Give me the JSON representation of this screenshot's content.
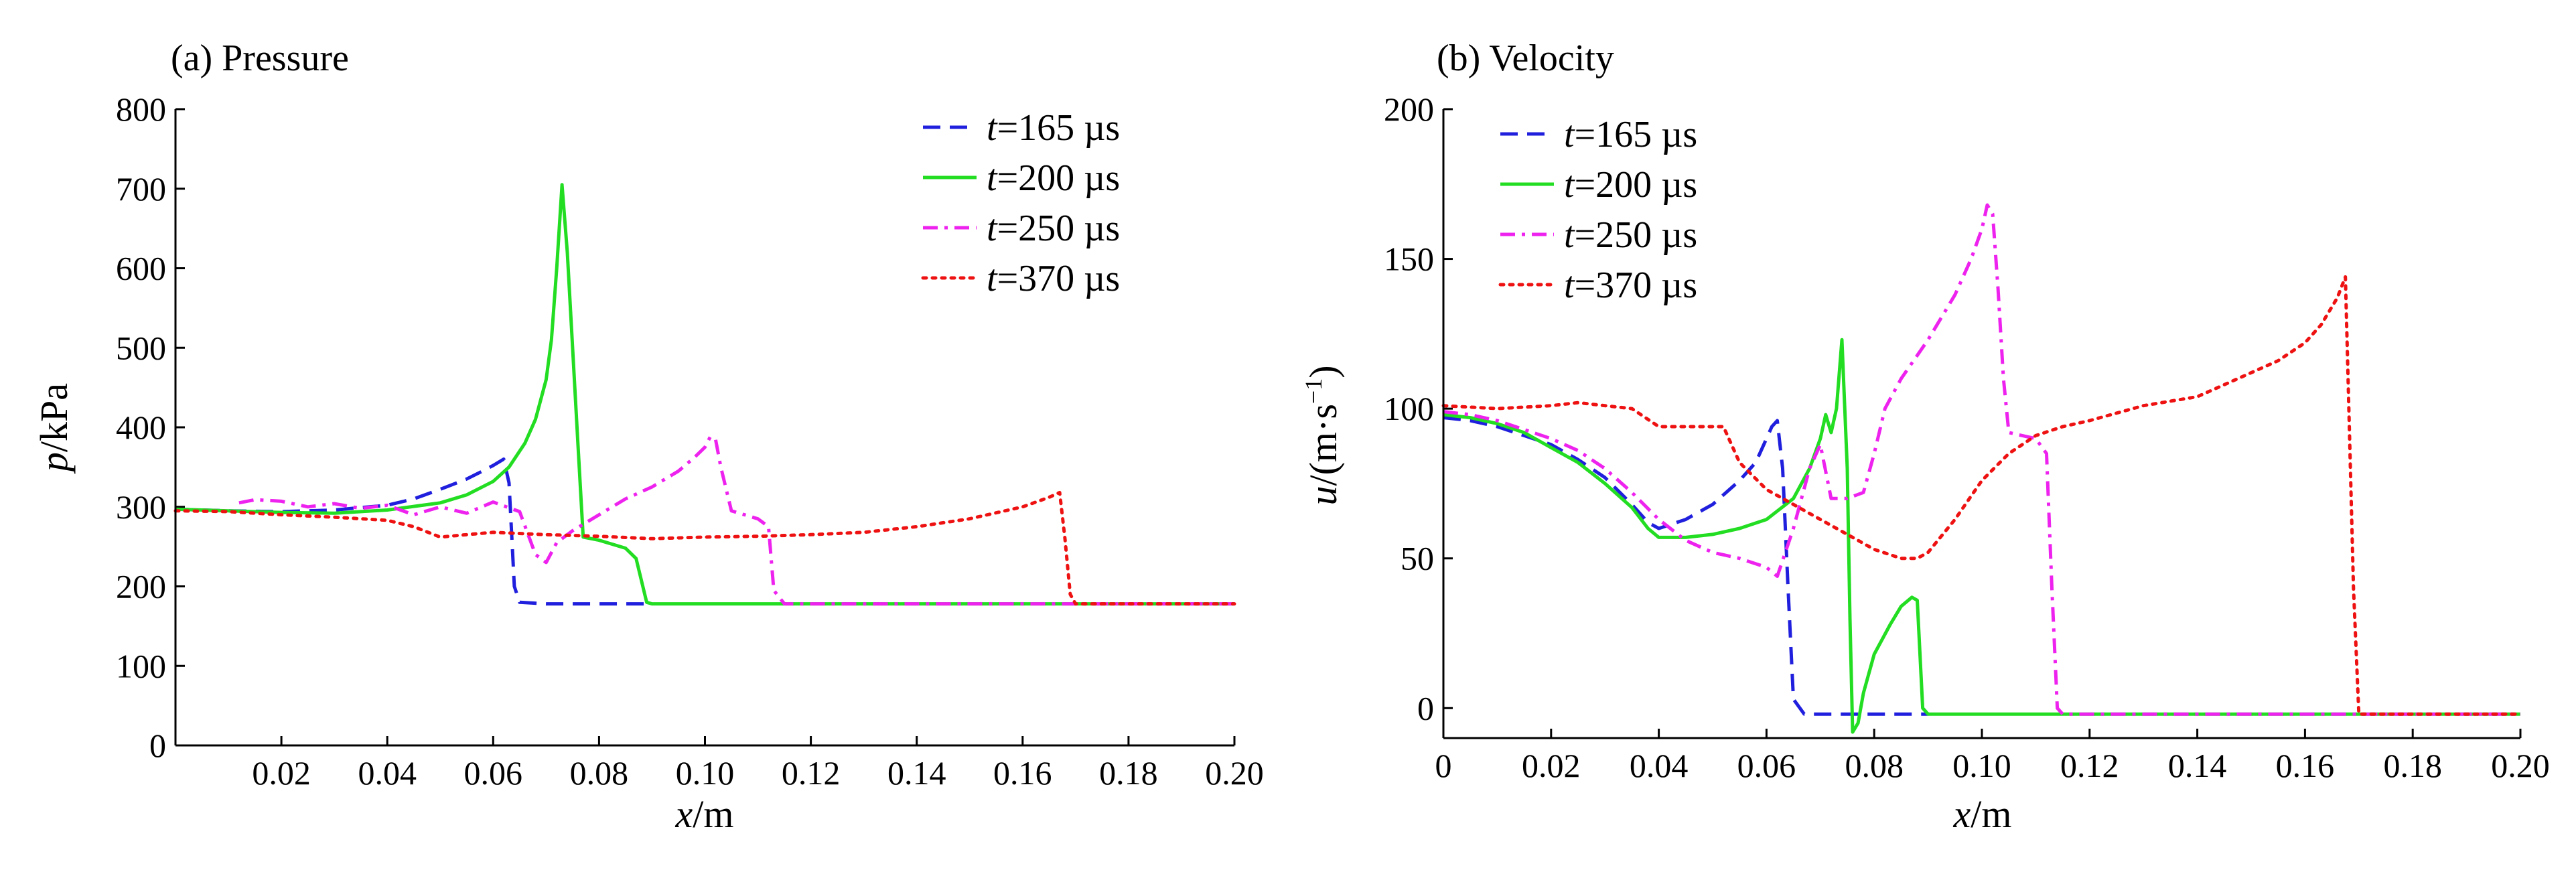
{
  "chart_data": [
    {
      "type": "line",
      "title": "(a) Pressure",
      "xlabel_var": "x",
      "xlabel_unit": "/m",
      "ylabel_var": "p",
      "ylabel_unit": "/kPa",
      "xlim": [
        0,
        0.2
      ],
      "ylim": [
        0,
        800
      ],
      "xticks": [
        0.02,
        0.04,
        0.06,
        0.08,
        0.1,
        0.12,
        0.14,
        0.16,
        0.18,
        0.2
      ],
      "xtick_labels": [
        "0.02",
        "0.04",
        "0.06",
        "0.08",
        "0.10",
        "0.12",
        "0.14",
        "0.16",
        "0.18",
        "0.20"
      ],
      "yticks": [
        0,
        100,
        200,
        300,
        400,
        500,
        600,
        700,
        800
      ],
      "ytick_labels": [
        "0",
        "100",
        "200",
        "300",
        "400",
        "500",
        "600",
        "700",
        "800"
      ],
      "grid": false,
      "legend_position": "top-right",
      "series": [
        {
          "name": "t=165 µs",
          "name_var": "t",
          "name_rest": "=165 µs",
          "color": "#1f1fdd",
          "dash": "dash",
          "x": [
            0,
            0.01,
            0.02,
            0.03,
            0.04,
            0.045,
            0.05,
            0.055,
            0.058,
            0.06,
            0.062,
            0.063,
            0.064,
            0.065,
            0.07,
            0.08,
            0.09
          ],
          "y": [
            297,
            295,
            294,
            296,
            302,
            310,
            322,
            335,
            345,
            352,
            360,
            330,
            200,
            180,
            178,
            178,
            178
          ]
        },
        {
          "name": "t=200 µs",
          "name_var": "t",
          "name_rest": "=200 µs",
          "color": "#22dd22",
          "dash": "solid",
          "x": [
            0,
            0.01,
            0.02,
            0.03,
            0.04,
            0.05,
            0.055,
            0.06,
            0.063,
            0.066,
            0.068,
            0.07,
            0.071,
            0.072,
            0.073,
            0.074,
            0.075,
            0.076,
            0.077,
            0.08,
            0.085,
            0.087,
            0.089,
            0.09,
            0.1,
            0.12,
            0.14,
            0.16,
            0.18,
            0.2
          ],
          "y": [
            297,
            295,
            293,
            292,
            296,
            305,
            315,
            332,
            350,
            380,
            410,
            460,
            510,
            600,
            705,
            620,
            500,
            380,
            262,
            258,
            248,
            235,
            180,
            178,
            178,
            178,
            178,
            178,
            178,
            178
          ]
        },
        {
          "name": "t=250 µs",
          "name_var": "t",
          "name_rest": "=250 µs",
          "color": "#ee22ee",
          "dash": "dashdot",
          "x": [
            0.012,
            0.015,
            0.02,
            0.025,
            0.03,
            0.035,
            0.04,
            0.045,
            0.05,
            0.055,
            0.06,
            0.065,
            0.068,
            0.07,
            0.072,
            0.075,
            0.08,
            0.085,
            0.09,
            0.095,
            0.098,
            0.1,
            0.101,
            0.102,
            0.103,
            0.105,
            0.11,
            0.112,
            0.113,
            0.115,
            0.13,
            0.15,
            0.17,
            0.2
          ],
          "y": [
            305,
            309,
            307,
            300,
            304,
            298,
            302,
            290,
            300,
            292,
            306,
            294,
            240,
            230,
            255,
            270,
            290,
            310,
            325,
            345,
            362,
            375,
            388,
            385,
            350,
            295,
            285,
            275,
            195,
            178,
            178,
            178,
            178,
            178
          ]
        },
        {
          "name": "t=370 µs",
          "name_var": "t",
          "name_rest": "=370 µs",
          "color": "#ee1111",
          "dash": "dot",
          "x": [
            0,
            0.01,
            0.02,
            0.03,
            0.04,
            0.045,
            0.05,
            0.055,
            0.06,
            0.07,
            0.08,
            0.09,
            0.1,
            0.11,
            0.12,
            0.13,
            0.14,
            0.15,
            0.16,
            0.165,
            0.167,
            0.168,
            0.169,
            0.17,
            0.18,
            0.19,
            0.2
          ],
          "y": [
            295,
            294,
            290,
            287,
            283,
            275,
            262,
            265,
            268,
            265,
            263,
            260,
            262,
            263,
            265,
            268,
            275,
            285,
            300,
            312,
            318,
            260,
            190,
            178,
            178,
            178,
            178
          ]
        }
      ]
    },
    {
      "type": "line",
      "title": "(b) Velocity",
      "xlabel_var": "x",
      "xlabel_unit": "/m",
      "ylabel_var": "u",
      "ylabel_unit": "/(m·s",
      "ylabel_sup": "−1",
      "ylabel_close": ")",
      "xlim": [
        0,
        0.2
      ],
      "ylim": [
        -10,
        200
      ],
      "xticks": [
        0,
        0.02,
        0.04,
        0.06,
        0.08,
        0.1,
        0.12,
        0.14,
        0.16,
        0.18,
        0.2
      ],
      "xtick_labels": [
        "0",
        "0.02",
        "0.04",
        "0.06",
        "0.08",
        "0.10",
        "0.12",
        "0.14",
        "0.16",
        "0.18",
        "0.20"
      ],
      "yticks": [
        0,
        50,
        100,
        150,
        200
      ],
      "ytick_labels": [
        "0",
        "50",
        "100",
        "150",
        "200"
      ],
      "grid": false,
      "legend_position": "top-left",
      "series": [
        {
          "name": "t=165 µs",
          "name_var": "t",
          "name_rest": "=165 µs",
          "color": "#1f1fdd",
          "dash": "dash",
          "x": [
            0,
            0.005,
            0.01,
            0.015,
            0.02,
            0.025,
            0.03,
            0.035,
            0.038,
            0.04,
            0.045,
            0.05,
            0.055,
            0.058,
            0.06,
            0.061,
            0.062,
            0.063,
            0.064,
            0.065,
            0.067,
            0.07,
            0.08,
            0.09
          ],
          "y": [
            97,
            96,
            94,
            91,
            88,
            83,
            77,
            68,
            62,
            60,
            63,
            68,
            76,
            82,
            90,
            94,
            96,
            80,
            40,
            3,
            -2,
            -2,
            -2,
            -2
          ]
        },
        {
          "name": "t=200 µs",
          "name_var": "t",
          "name_rest": "=200 µs",
          "color": "#22dd22",
          "dash": "solid",
          "x": [
            0,
            0.005,
            0.01,
            0.015,
            0.02,
            0.025,
            0.03,
            0.035,
            0.038,
            0.04,
            0.045,
            0.05,
            0.055,
            0.06,
            0.065,
            0.068,
            0.07,
            0.071,
            0.072,
            0.073,
            0.074,
            0.075,
            0.0755,
            0.076,
            0.077,
            0.078,
            0.08,
            0.083,
            0.085,
            0.087,
            0.088,
            0.089,
            0.09,
            0.1,
            0.12,
            0.14,
            0.16,
            0.18,
            0.2
          ],
          "y": [
            98,
            97,
            95,
            92,
            87,
            82,
            75,
            67,
            60,
            57,
            57,
            58,
            60,
            63,
            70,
            80,
            90,
            98,
            92,
            100,
            123,
            80,
            30,
            -8,
            -5,
            5,
            18,
            28,
            34,
            37,
            36,
            0,
            -2,
            -2,
            -2,
            -2,
            -2,
            -2,
            -2
          ]
        },
        {
          "name": "t=250 µs",
          "name_var": "t",
          "name_rest": "=250 µs",
          "color": "#ee22ee",
          "dash": "dashdot",
          "x": [
            0,
            0.005,
            0.01,
            0.015,
            0.02,
            0.025,
            0.03,
            0.035,
            0.04,
            0.045,
            0.05,
            0.055,
            0.06,
            0.062,
            0.065,
            0.068,
            0.07,
            0.072,
            0.075,
            0.078,
            0.08,
            0.082,
            0.085,
            0.09,
            0.095,
            0.098,
            0.1,
            0.101,
            0.102,
            0.103,
            0.104,
            0.105,
            0.11,
            0.112,
            0.113,
            0.114,
            0.115,
            0.12,
            0.14,
            0.16,
            0.18,
            0.2
          ],
          "y": [
            99,
            98,
            96,
            93,
            90,
            86,
            80,
            72,
            63,
            56,
            52,
            50,
            47,
            44,
            60,
            80,
            88,
            70,
            70,
            72,
            85,
            100,
            110,
            123,
            138,
            150,
            160,
            168,
            165,
            140,
            110,
            92,
            90,
            85,
            40,
            0,
            -2,
            -2,
            -2,
            -2,
            -2,
            -2
          ]
        },
        {
          "name": "t=370 µs",
          "name_var": "t",
          "name_rest": "=370 µs",
          "color": "#ee1111",
          "dash": "dot",
          "x": [
            0,
            0.01,
            0.02,
            0.025,
            0.03,
            0.035,
            0.04,
            0.045,
            0.05,
            0.052,
            0.055,
            0.06,
            0.065,
            0.07,
            0.075,
            0.08,
            0.085,
            0.088,
            0.09,
            0.095,
            0.1,
            0.105,
            0.11,
            0.115,
            0.12,
            0.13,
            0.14,
            0.15,
            0.155,
            0.16,
            0.163,
            0.166,
            0.1675,
            0.168,
            0.169,
            0.17,
            0.18,
            0.19,
            0.2
          ],
          "y": [
            101,
            100,
            101,
            102,
            101,
            100,
            94,
            94,
            94,
            94,
            82,
            73,
            68,
            63,
            58,
            53,
            50,
            50,
            52,
            63,
            76,
            85,
            91,
            94,
            96,
            101,
            104,
            112,
            116,
            122,
            128,
            137,
            144,
            110,
            40,
            -2,
            -2,
            -2,
            -2
          ]
        }
      ]
    }
  ]
}
